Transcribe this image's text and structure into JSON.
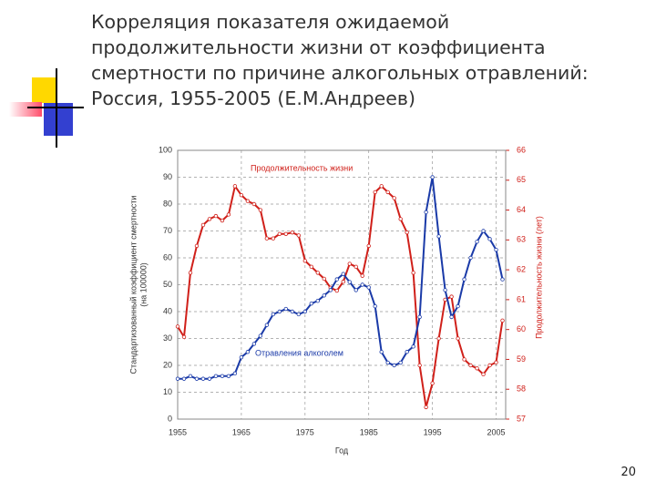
{
  "slide": {
    "title_lines": [
      "Корреляция показателя ожидаемой",
      "продолжительности жизни от коэффициента",
      "смертности по причине алкогольных отравлений:",
      "Россия, 1955-2005 (Е.М.Андреев)"
    ],
    "page_number": "20"
  },
  "chart_data": {
    "type": "line",
    "x_label": "Год",
    "y_label": [
      "Стандартизованный коэффициент смертности",
      "(на 100000)"
    ],
    "y2_label": "Продолжительность жизни (лет)",
    "x": [
      1955,
      1956,
      1957,
      1958,
      1959,
      1960,
      1961,
      1962,
      1963,
      1964,
      1965,
      1966,
      1967,
      1968,
      1969,
      1970,
      1971,
      1972,
      1973,
      1974,
      1975,
      1976,
      1977,
      1978,
      1979,
      1980,
      1981,
      1982,
      1983,
      1984,
      1985,
      1986,
      1987,
      1988,
      1989,
      1990,
      1991,
      1992,
      1993,
      1994,
      1995,
      1996,
      1997,
      1998,
      1999,
      2000,
      2001,
      2002,
      2003,
      2004,
      2005,
      2006
    ],
    "xlim": [
      1955,
      2006.5
    ],
    "xticks": [
      1955,
      1965,
      1975,
      1985,
      1995,
      2005
    ],
    "ylim": [
      0,
      100
    ],
    "yticks": [
      0,
      10,
      20,
      30,
      40,
      50,
      60,
      70,
      80,
      90,
      100
    ],
    "y2lim": [
      57,
      66
    ],
    "y2ticks": [
      57,
      58,
      59,
      60,
      61,
      62,
      63,
      64,
      65,
      66
    ],
    "grid": true,
    "series": [
      {
        "name": "Продолжительность жизни",
        "color": "#d0201a",
        "axis": "y2",
        "values": [
          60.1,
          59.75,
          61.9,
          62.8,
          63.5,
          63.7,
          63.8,
          63.65,
          63.85,
          64.8,
          64.5,
          64.3,
          64.2,
          64.0,
          63.05,
          63.05,
          63.2,
          63.2,
          63.25,
          63.15,
          62.3,
          62.1,
          61.9,
          61.7,
          61.4,
          61.3,
          61.6,
          62.2,
          62.1,
          61.8,
          62.8,
          64.6,
          64.8,
          64.6,
          64.4,
          63.7,
          63.25,
          61.9,
          58.8,
          57.4,
          58.2,
          59.7,
          61.0,
          61.1,
          59.7,
          59.0,
          58.8,
          58.7,
          58.5,
          58.8,
          58.9,
          60.3
        ]
      },
      {
        "name": "Отравления алкоголем",
        "color": "#1a3aa8",
        "axis": "y",
        "values": [
          15,
          15,
          16,
          15,
          15,
          15,
          16,
          16,
          16,
          17,
          23,
          25,
          28,
          31,
          35,
          39,
          40,
          41,
          40,
          39,
          40,
          43,
          44,
          46,
          48,
          52,
          54,
          51,
          48,
          50,
          49,
          42,
          25,
          21,
          20,
          21,
          25,
          27,
          38,
          77,
          90,
          68,
          48,
          38,
          42,
          52,
          60,
          66,
          70,
          67,
          63,
          52
        ]
      }
    ]
  }
}
